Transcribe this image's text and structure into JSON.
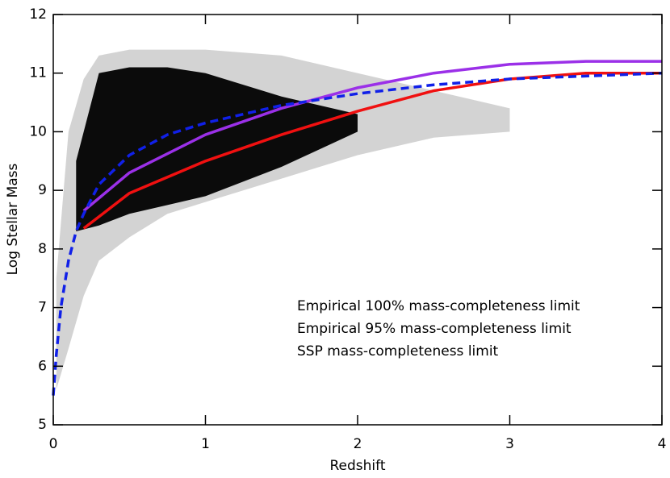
{
  "chart_data": {
    "type": "line",
    "x_label": "Redshift",
    "y_label": "Log Stellar Mass",
    "xlim": [
      0,
      4
    ],
    "xticks": [
      0,
      1,
      2,
      3,
      4
    ],
    "ylim": [
      5,
      12
    ],
    "yticks": [
      5,
      6,
      7,
      8,
      9,
      10,
      11,
      12
    ],
    "density": {
      "outer": {
        "color": "#c8c8c8",
        "x": [
          0.02,
          0.1,
          0.2,
          0.3,
          0.5,
          0.75,
          1.0,
          1.5,
          2.0,
          2.5,
          3.0
        ],
        "upper": [
          7.5,
          10.0,
          10.9,
          11.3,
          11.4,
          11.4,
          11.4,
          11.3,
          11.0,
          10.7,
          10.4
        ],
        "lower": [
          5.6,
          6.3,
          7.2,
          7.8,
          8.2,
          8.6,
          8.8,
          9.2,
          9.6,
          9.9,
          10.0
        ]
      },
      "core": {
        "color": "#000000",
        "x": [
          0.15,
          0.3,
          0.5,
          0.75,
          1.0,
          1.5,
          2.0
        ],
        "upper": [
          9.5,
          11.0,
          11.1,
          11.1,
          11.0,
          10.6,
          10.3
        ],
        "lower": [
          8.3,
          8.4,
          8.6,
          8.75,
          8.9,
          9.4,
          10.0
        ]
      }
    },
    "series": [
      {
        "name": "Empirical 100% mass-completeness limit",
        "color": "#9b30e8",
        "dash": false,
        "x": [
          0.2,
          0.5,
          1.0,
          1.5,
          2.0,
          2.5,
          3.0,
          3.5,
          4.0
        ],
        "values": [
          8.65,
          9.3,
          9.95,
          10.4,
          10.75,
          11.0,
          11.15,
          11.2,
          11.2
        ]
      },
      {
        "name": "Empirical 95% mass-completeness limit",
        "color": "#f01010",
        "dash": false,
        "x": [
          0.2,
          0.5,
          1.0,
          1.5,
          2.0,
          2.5,
          3.0,
          3.5,
          4.0
        ],
        "values": [
          8.35,
          8.95,
          9.5,
          9.95,
          10.35,
          10.7,
          10.9,
          11.0,
          11.0
        ]
      },
      {
        "name": "SSP mass-completeness limit",
        "color": "#1020e8",
        "dash": true,
        "x": [
          0.0,
          0.02,
          0.05,
          0.1,
          0.15,
          0.2,
          0.3,
          0.5,
          0.75,
          1.0,
          1.5,
          2.0,
          2.5,
          3.0,
          3.5,
          4.0
        ],
        "values": [
          5.5,
          6.2,
          7.0,
          7.8,
          8.3,
          8.6,
          9.1,
          9.6,
          9.95,
          10.15,
          10.45,
          10.65,
          10.8,
          10.9,
          10.95,
          11.0
        ]
      }
    ]
  }
}
